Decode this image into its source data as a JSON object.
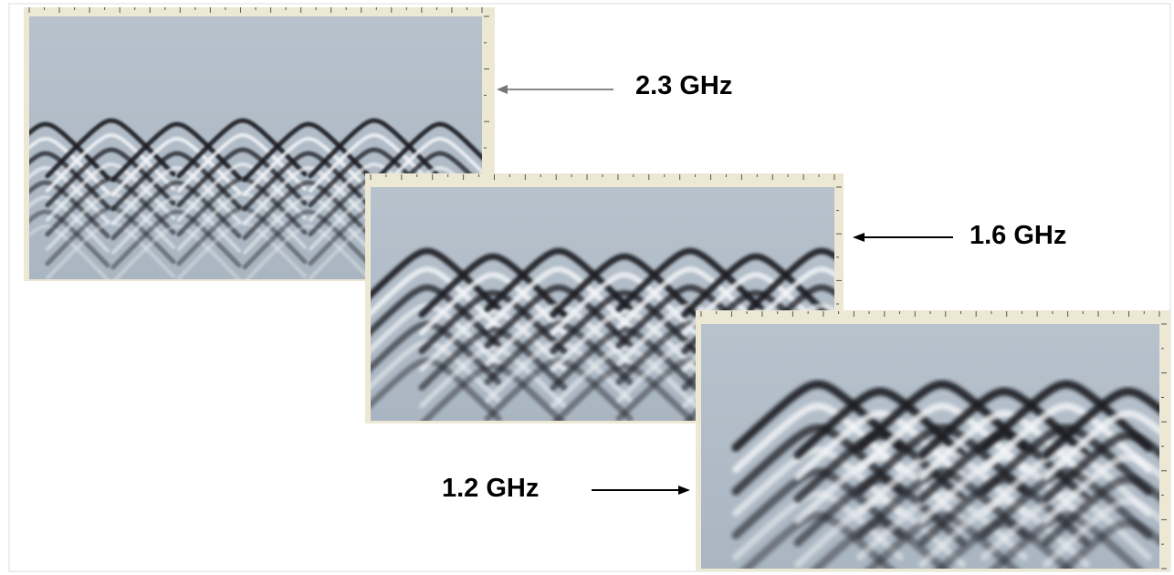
{
  "labels": {
    "high": "2.3 GHz",
    "mid": "1.6 GHz",
    "low": "1.2 GHz"
  },
  "scans": [
    {
      "id": "high",
      "frequency": "2.3 GHz",
      "hyperbola_count": 7
    },
    {
      "id": "mid",
      "frequency": "1.6 GHz",
      "hyperbola_count": 7
    },
    {
      "id": "low",
      "frequency": "1.2 GHz",
      "hyperbola_count": 6
    }
  ],
  "colors": {
    "background": "#ffffff",
    "scan_ground": "#aab6c2",
    "reflection_dark": "#1a1c20",
    "reflection_light": "#f4f6f8",
    "axis_paper": "#e9e5cf",
    "arrow": "#000000"
  }
}
